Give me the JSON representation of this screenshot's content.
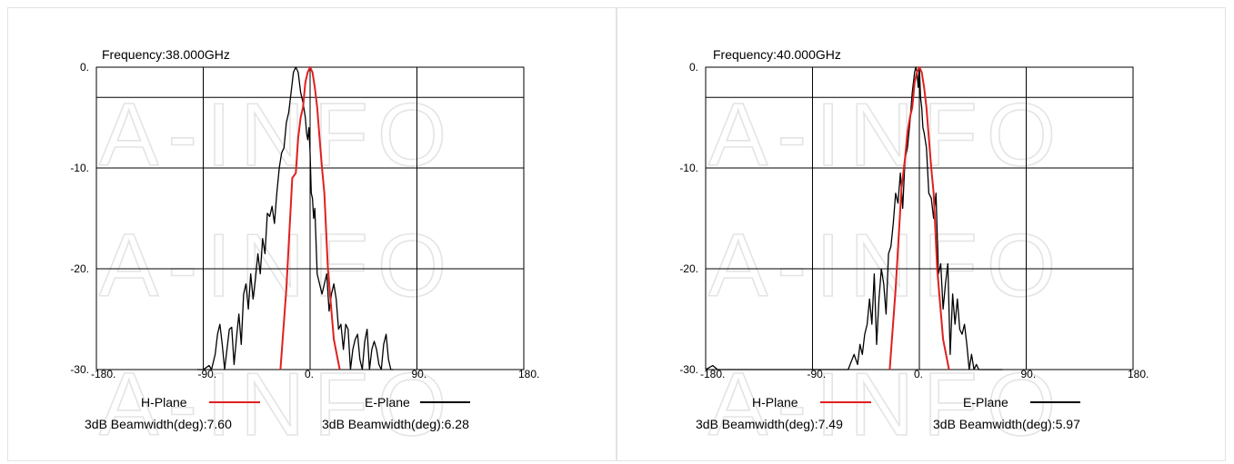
{
  "watermark": "A-INFO",
  "legend": {
    "h_plane": "H-Plane",
    "e_plane": "E-Plane",
    "h_color": "#e02020",
    "e_color": "#000000"
  },
  "chart_data": [
    {
      "type": "line",
      "title": "Frequency:38.000GHz",
      "xlim": [
        -180,
        180
      ],
      "ylim": [
        -30,
        0
      ],
      "x_ticks": [
        -180,
        -90,
        0,
        90,
        180
      ],
      "x_tick_labels": [
        "-180.",
        "-90.",
        "0.",
        "90.",
        "180."
      ],
      "y_ticks": [
        0,
        -10,
        -20,
        -30
      ],
      "y_tick_labels": [
        "0.",
        "-10.",
        "-20.",
        "-30."
      ],
      "hline_db": -3,
      "grid": true,
      "h_beamwidth": "3dB Beamwidth(deg):7.60",
      "e_beamwidth": "3dB Beamwidth(deg):6.28",
      "series": [
        {
          "name": "E-Plane",
          "x": [
            -95,
            -90,
            -85,
            -83,
            -80,
            -78,
            -76,
            -74,
            -72,
            -70,
            -68,
            -66,
            -64,
            -62,
            -60,
            -58,
            -56,
            -54,
            -52,
            -50,
            -48,
            -46,
            -44,
            -42,
            -40,
            -38,
            -36,
            -34,
            -32,
            -30,
            -28,
            -26,
            -24,
            -22,
            -20,
            -18,
            -16,
            -14,
            -12,
            -10,
            -8,
            -6,
            -4,
            -3,
            -2,
            -1,
            0,
            1,
            2,
            3,
            4,
            6,
            8,
            10,
            12,
            14,
            16,
            18,
            20,
            22,
            24,
            26,
            28,
            30,
            32,
            34,
            36,
            38,
            40,
            42,
            44,
            46,
            48,
            50,
            52,
            54,
            56,
            58,
            60,
            62,
            64,
            66,
            68,
            70
          ],
          "values": [
            -30,
            -30,
            -29.6,
            -30,
            -28.5,
            -26.5,
            -25.5,
            -27.5,
            -30,
            -28,
            -26,
            -25.8,
            -29.5,
            -26.8,
            -24.5,
            -27.5,
            -22.5,
            -21.5,
            -24,
            -20.5,
            -23,
            -21,
            -18.5,
            -20.5,
            -17,
            -18.5,
            -14.5,
            -14.8,
            -13.8,
            -15.5,
            -12.5,
            -10,
            -8.5,
            -8,
            -5.5,
            -4.5,
            -2.5,
            -0.5,
            0,
            -0.5,
            -2.5,
            -3.5,
            -5,
            -6.5,
            -7.2,
            -6,
            -8.5,
            -12.5,
            -13,
            -15,
            -14,
            -20.5,
            -21.5,
            -22.5,
            -21.5,
            -20.5,
            -24.2,
            -22.5,
            -21.5,
            -23,
            -26,
            -25.5,
            -28,
            -25.5,
            -26,
            -30,
            -28,
            -27,
            -26.5,
            -29,
            -30,
            -27.2,
            -26,
            -30,
            -28,
            -27.2,
            -28,
            -29.5,
            -30,
            -27.5,
            -26.5,
            -29,
            -30,
            -30
          ]
        },
        {
          "name": "H-Plane",
          "x": [
            -25,
            -20,
            -15,
            -12,
            -10,
            -8,
            -6,
            -4,
            -2,
            0,
            2,
            4,
            6,
            8,
            10,
            12,
            15,
            20,
            25
          ],
          "values": [
            -30,
            -22,
            -11,
            -10.5,
            -7,
            -5,
            -4,
            -1.5,
            -0.5,
            0,
            -0.5,
            -2,
            -4,
            -7,
            -10,
            -12.5,
            -20,
            -27,
            -30
          ]
        }
      ]
    },
    {
      "type": "line",
      "title": "Frequency:40.000GHz",
      "xlim": [
        -180,
        180
      ],
      "ylim": [
        -30,
        0
      ],
      "x_ticks": [
        -180,
        -90,
        0,
        90,
        180
      ],
      "x_tick_labels": [
        "-180.",
        "-90.",
        "0.",
        "90.",
        "180."
      ],
      "y_ticks": [
        0,
        -10,
        -20,
        -30
      ],
      "y_tick_labels": [
        "0.",
        "-10.",
        "-20.",
        "-30."
      ],
      "hline_db": -3,
      "grid": true,
      "h_beamwidth": "3dB Beamwidth(deg):7.49",
      "e_beamwidth": "3dB Beamwidth(deg):5.97",
      "series": [
        {
          "name": "E-Plane",
          "x": [
            -180,
            -177,
            -174,
            -170,
            -60,
            -55,
            -52,
            -50,
            -48,
            -46,
            -44,
            -42,
            -40,
            -38,
            -36,
            -34,
            -32,
            -30,
            -28,
            -26,
            -24,
            -22,
            -20,
            -18,
            -16,
            -14,
            -12,
            -10,
            -8,
            -6,
            -4,
            -3,
            -2,
            -1,
            0,
            1,
            2,
            3,
            4,
            6,
            8,
            10,
            12,
            14,
            16,
            18,
            20,
            22,
            24,
            26,
            28,
            30,
            32,
            34,
            36,
            38,
            40,
            42,
            44,
            46,
            48,
            50,
            52,
            54,
            56,
            58,
            60,
            62,
            64,
            66,
            68,
            70
          ],
          "values": [
            -30,
            -29.8,
            -29.6,
            -30,
            -30,
            -28.5,
            -29.5,
            -27.5,
            -28.5,
            -26.5,
            -25.5,
            -23,
            -25.5,
            -20.5,
            -27.5,
            -23,
            -20,
            -21.5,
            -24.5,
            -18.5,
            -17.8,
            -15.5,
            -12.5,
            -13.5,
            -10.5,
            -14,
            -9,
            -8,
            -5.5,
            -2.5,
            -0.5,
            0,
            -0.5,
            -2,
            0,
            -3,
            -4,
            -6,
            -6.5,
            -8,
            -12.5,
            -13,
            -15,
            -12.5,
            -20.5,
            -19.5,
            -24,
            -21.5,
            -19.5,
            -28.5,
            -22.5,
            -25.5,
            -23,
            -26,
            -26.5,
            -25.5,
            -27.5,
            -30,
            -28.5,
            -30,
            -29.5,
            -30,
            -30,
            -30,
            -30,
            -30,
            -30,
            -30,
            -30,
            -30,
            -30,
            -30
          ]
        },
        {
          "name": "H-Plane",
          "x": [
            -25,
            -20,
            -15,
            -12,
            -10,
            -8,
            -6,
            -4,
            -2,
            0,
            2,
            4,
            6,
            8,
            10,
            12,
            15,
            20,
            25
          ],
          "values": [
            -30,
            -22,
            -12,
            -9,
            -6.5,
            -5,
            -4,
            -1.5,
            -0.5,
            0,
            -0.5,
            -2,
            -4,
            -7,
            -10,
            -12.5,
            -20,
            -27,
            -30
          ]
        }
      ]
    }
  ]
}
